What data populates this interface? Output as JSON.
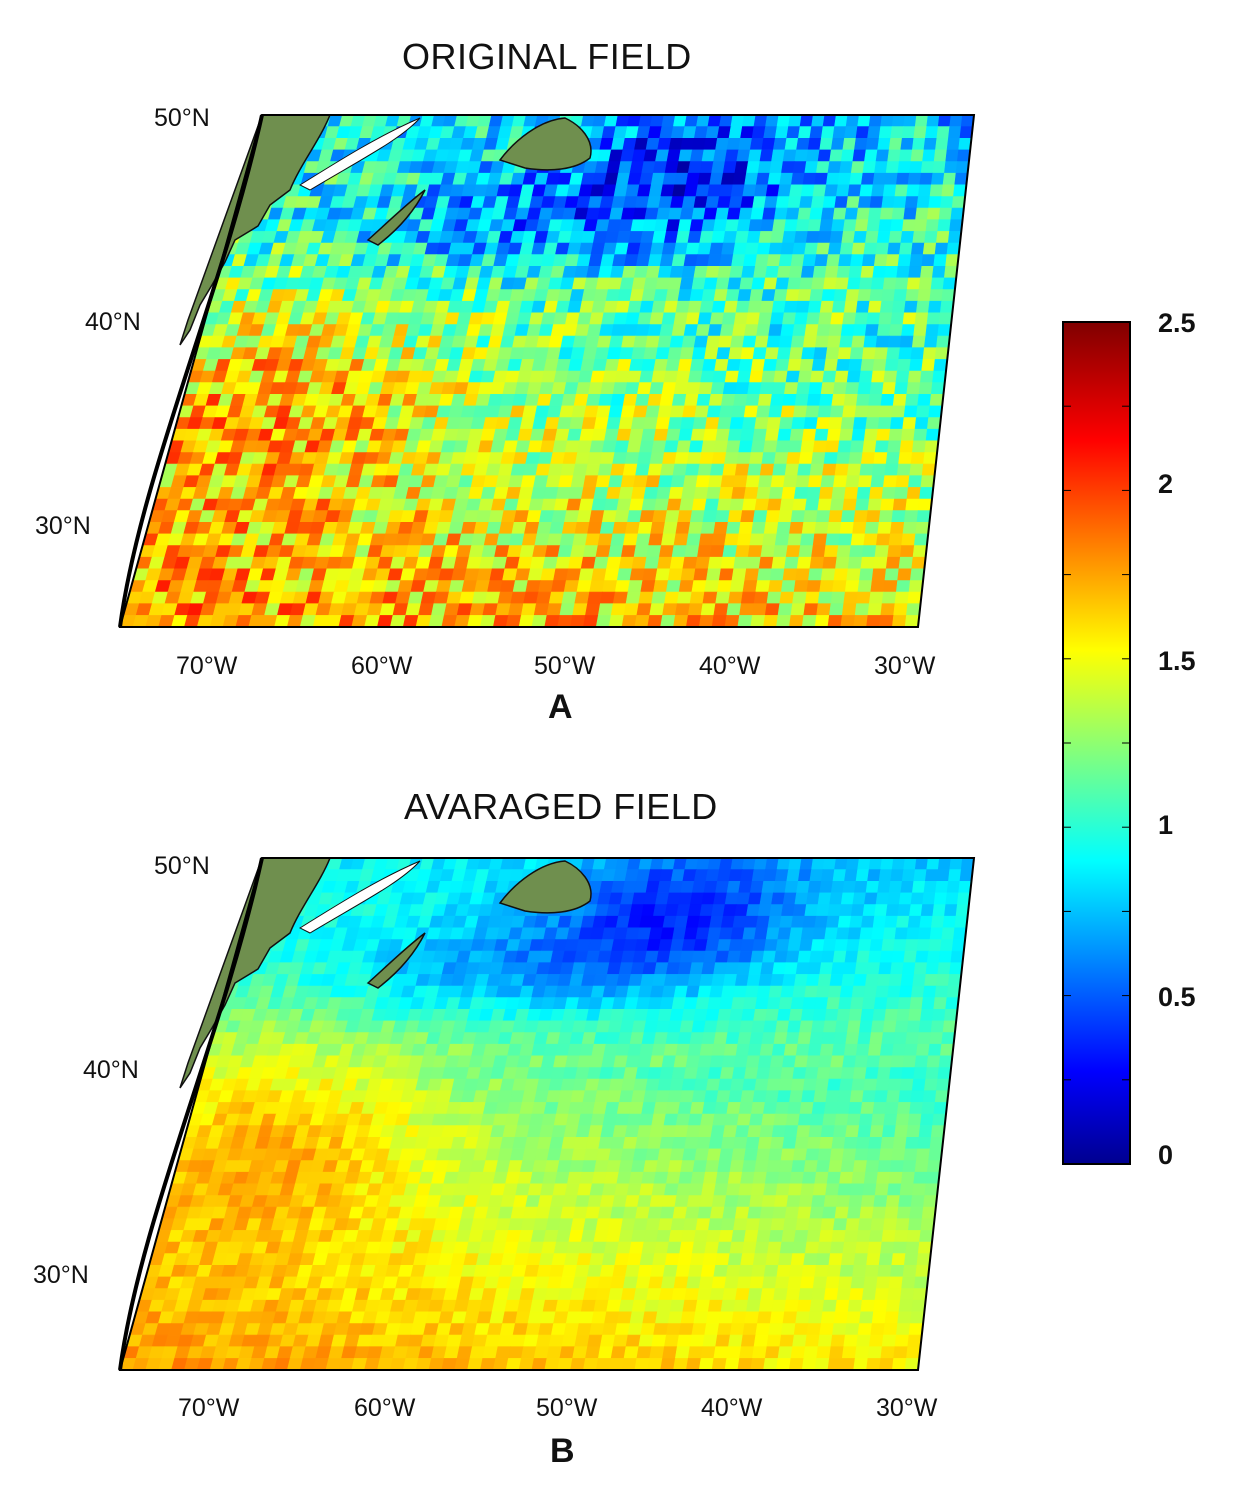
{
  "panels": [
    {
      "id": "A",
      "title": "ORIGINAL FIELD",
      "letter": "A",
      "lat_labels": [
        "50°N",
        "40°N",
        "30°N"
      ],
      "lon_labels": [
        "70°W",
        "60°W",
        "50°W",
        "40°W",
        "30°W"
      ],
      "field": "original"
    },
    {
      "id": "B",
      "title": "AVARAGED FIELD",
      "letter": "B",
      "lat_labels": [
        "50°N",
        "40°N",
        "30°N"
      ],
      "lon_labels": [
        "70°W",
        "60°W",
        "50°W",
        "40°W",
        "30°W"
      ],
      "field": "averaged"
    }
  ],
  "colorbar": {
    "min": 0,
    "max": 2.5,
    "ticks": [
      "2.5",
      "2",
      "1.5",
      "1",
      "0.5",
      "0"
    ],
    "colormap": "jet"
  },
  "map_extent": {
    "lon_range": [
      -75,
      -30
    ],
    "lat_range": [
      25,
      50
    ]
  },
  "colors": {
    "land": "#6f8f4e",
    "coast": "#111111",
    "frame": "#000000"
  }
}
